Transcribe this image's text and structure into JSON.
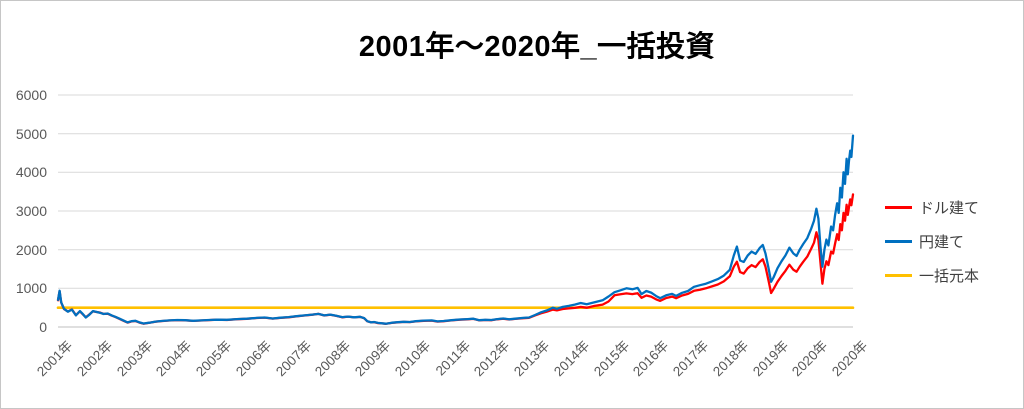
{
  "chart_data": {
    "type": "line",
    "title": "2001年～2020年_一括投資",
    "xlabel": "",
    "ylabel": "",
    "x_range": [
      2001,
      2021
    ],
    "ylim": [
      0,
      6000
    ],
    "y_ticks": [
      0,
      1000,
      2000,
      3000,
      4000,
      5000,
      6000
    ],
    "x_tick_labels": [
      "2001年",
      "2002年",
      "2003年",
      "2004年",
      "2005年",
      "2006年",
      "2007年",
      "2008年",
      "2009年",
      "2010年",
      "2011年",
      "2012年",
      "2013年",
      "2014年",
      "2015年",
      "2016年",
      "2017年",
      "2018年",
      "2019年",
      "2020年",
      "2020年"
    ],
    "grid": "horizontal-only",
    "legend_position": "right",
    "x": [
      2001.0,
      2001.04,
      2001.08,
      2001.15,
      2001.25,
      2001.35,
      2001.45,
      2001.55,
      2001.63,
      2001.7,
      2001.78,
      2001.88,
      2001.95,
      2002.05,
      2002.15,
      2002.25,
      2002.35,
      2002.45,
      2002.55,
      2002.65,
      2002.75,
      2002.85,
      2002.95,
      2003.05,
      2003.15,
      2003.3,
      2003.45,
      2003.6,
      2003.8,
      2004.0,
      2004.2,
      2004.4,
      2004.6,
      2004.8,
      2005.0,
      2005.25,
      2005.5,
      2005.75,
      2006.0,
      2006.2,
      2006.4,
      2006.6,
      2006.8,
      2007.0,
      2007.2,
      2007.4,
      2007.55,
      2007.7,
      2007.85,
      2008.0,
      2008.15,
      2008.3,
      2008.45,
      2008.6,
      2008.7,
      2008.78,
      2008.88,
      2008.95,
      2009.05,
      2009.15,
      2009.25,
      2009.4,
      2009.55,
      2009.7,
      2009.85,
      2010.0,
      2010.2,
      2010.4,
      2010.55,
      2010.7,
      2010.9,
      2011.1,
      2011.3,
      2011.45,
      2011.6,
      2011.75,
      2011.9,
      2012.05,
      2012.2,
      2012.35,
      2012.5,
      2012.7,
      2012.85,
      2013.0,
      2013.15,
      2013.3,
      2013.45,
      2013.55,
      2013.7,
      2013.85,
      2014.0,
      2014.15,
      2014.3,
      2014.5,
      2014.7,
      2014.85,
      2015.0,
      2015.15,
      2015.3,
      2015.45,
      2015.58,
      2015.68,
      2015.8,
      2015.92,
      2016.05,
      2016.15,
      2016.3,
      2016.45,
      2016.55,
      2016.7,
      2016.85,
      2017.0,
      2017.15,
      2017.3,
      2017.45,
      2017.6,
      2017.75,
      2017.9,
      2018.0,
      2018.08,
      2018.16,
      2018.25,
      2018.35,
      2018.45,
      2018.55,
      2018.65,
      2018.73,
      2018.8,
      2018.88,
      2018.94,
      2019.0,
      2019.1,
      2019.2,
      2019.3,
      2019.4,
      2019.5,
      2019.58,
      2019.66,
      2019.75,
      2019.85,
      2019.95,
      2020.02,
      2020.08,
      2020.13,
      2020.18,
      2020.23,
      2020.28,
      2020.33,
      2020.38,
      2020.45,
      2020.5,
      2020.55,
      2020.6,
      2020.64,
      2020.68,
      2020.72,
      2020.76,
      2020.8,
      2020.84,
      2020.87,
      2020.9,
      2020.93,
      2020.96,
      2021.0
    ],
    "series": [
      {
        "id": "usd",
        "name": "ドル建て",
        "color": "#FF0000",
        "values": [
          690,
          925,
          630,
          465,
          400,
          455,
          305,
          405,
          325,
          250,
          315,
          405,
          390,
          375,
          340,
          345,
          295,
          255,
          210,
          160,
          115,
          145,
          155,
          115,
          85,
          108,
          138,
          152,
          168,
          178,
          172,
          158,
          168,
          178,
          188,
          182,
          202,
          212,
          232,
          242,
          218,
          238,
          252,
          278,
          298,
          318,
          338,
          298,
          318,
          288,
          252,
          268,
          248,
          262,
          228,
          148,
          118,
          128,
          102,
          92,
          82,
          107,
          122,
          132,
          127,
          146,
          160,
          165,
          140,
          150,
          170,
          190,
          200,
          210,
          170,
          180,
          175,
          200,
          215,
          195,
          210,
          228,
          238,
          300,
          355,
          395,
          450,
          430,
          465,
          480,
          495,
          520,
          500,
          545,
          580,
          660,
          820,
          845,
          870,
          850,
          875,
          755,
          815,
          785,
          715,
          675,
          750,
          785,
          745,
          815,
          855,
          935,
          965,
          1000,
          1050,
          1100,
          1180,
          1310,
          1560,
          1690,
          1420,
          1380,
          1520,
          1600,
          1550,
          1680,
          1750,
          1560,
          1180,
          880,
          980,
          1170,
          1320,
          1450,
          1610,
          1480,
          1430,
          1560,
          1690,
          1820,
          2030,
          2180,
          2450,
          2250,
          1680,
          1120,
          1500,
          1700,
          1600,
          1950,
          1900,
          2160,
          2400,
          2250,
          2660,
          2500,
          2950,
          2750,
          3160,
          2900,
          3100,
          3300,
          3150,
          3430
        ]
      },
      {
        "id": "yen",
        "name": "円建て",
        "color": "#0070C0",
        "values": [
          700,
          940,
          640,
          470,
          395,
          450,
          300,
          410,
          330,
          245,
          310,
          410,
          395,
          370,
          335,
          350,
          300,
          260,
          215,
          165,
          120,
          150,
          160,
          120,
          90,
          110,
          140,
          155,
          170,
          180,
          175,
          160,
          170,
          180,
          190,
          185,
          205,
          215,
          235,
          245,
          220,
          240,
          255,
          280,
          300,
          320,
          340,
          300,
          320,
          290,
          255,
          270,
          250,
          265,
          230,
          150,
          120,
          130,
          105,
          95,
          85,
          110,
          125,
          135,
          130,
          150,
          165,
          170,
          145,
          155,
          175,
          195,
          205,
          215,
          175,
          185,
          180,
          205,
          220,
          200,
          215,
          235,
          245,
          310,
          380,
          430,
          500,
          470,
          520,
          545,
          580,
          620,
          590,
          640,
          690,
          790,
          900,
          950,
          1000,
          975,
          1010,
          850,
          930,
          890,
          800,
          745,
          820,
          855,
          805,
          885,
          930,
          1040,
          1080,
          1120,
          1180,
          1240,
          1330,
          1480,
          1850,
          2080,
          1720,
          1680,
          1850,
          1950,
          1890,
          2040,
          2120,
          1900,
          1500,
          1170,
          1280,
          1520,
          1700,
          1850,
          2050,
          1900,
          1840,
          2000,
          2150,
          2300,
          2550,
          2750,
          3060,
          2800,
          2100,
          1560,
          2000,
          2260,
          2110,
          2600,
          2500,
          2900,
          3200,
          2950,
          3600,
          3350,
          4000,
          3700,
          4350,
          3950,
          4300,
          4560,
          4400,
          4950
        ]
      },
      {
        "id": "principal",
        "name": "一括元本",
        "color": "#FFC000",
        "x": [
          2001,
          2021
        ],
        "values": [
          500,
          500
        ]
      }
    ]
  }
}
